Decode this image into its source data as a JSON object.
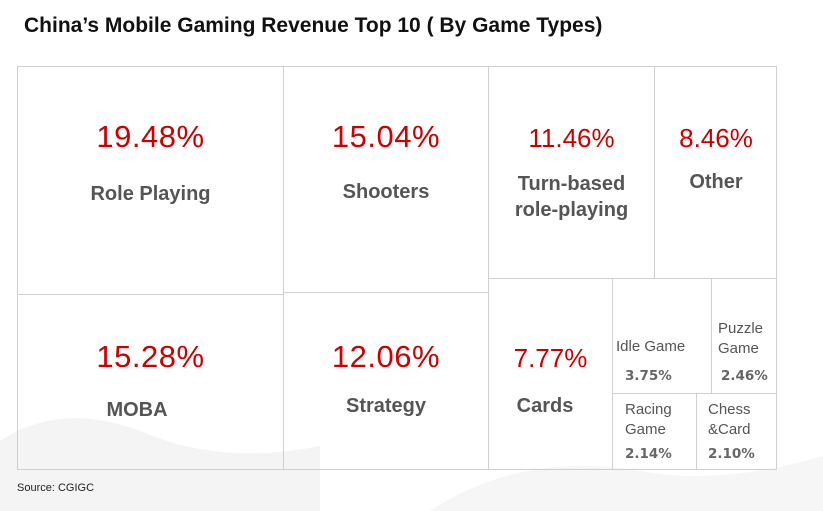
{
  "chart_data": {
    "type": "treemap",
    "title": "China’s Mobile Gaming Revenue Top 10 ( By Game Types)",
    "source": "Source: CGIGC",
    "items": [
      {
        "label": "Role Playing",
        "value": 19.48,
        "display": "19.48%"
      },
      {
        "label": "MOBA",
        "value": 15.28,
        "display": "15.28%"
      },
      {
        "label": "Shooters",
        "value": 15.04,
        "display": "15.04%"
      },
      {
        "label": "Strategy",
        "value": 12.06,
        "display": "12.06%"
      },
      {
        "label": "Turn-based role-playing",
        "value": 11.46,
        "display": "11.46%"
      },
      {
        "label": "Other",
        "value": 8.46,
        "display": "8.46%"
      },
      {
        "label": "Cards",
        "value": 7.77,
        "display": "7.77%"
      },
      {
        "label": "Idle Game",
        "value": 3.75,
        "display": "3.75%"
      },
      {
        "label": "Puzzle Game",
        "value": 2.46,
        "display": "2.46%"
      },
      {
        "label": "Racing Game",
        "value": 2.14,
        "display": "2.14%"
      },
      {
        "label": "Chess &Card",
        "value": 2.1,
        "display": "2.10%"
      }
    ],
    "colors": {
      "value": "#cc0000",
      "label": "#555555",
      "border": "#cfcfcf"
    }
  }
}
